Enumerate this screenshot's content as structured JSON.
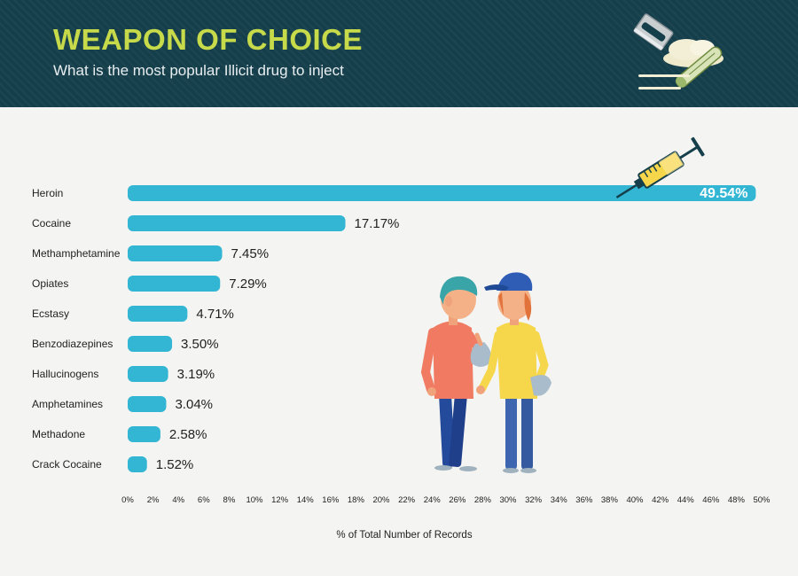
{
  "header": {
    "title": "WEAPON OF CHOICE",
    "subtitle": "What is the most popular Illicit drug to inject"
  },
  "colors": {
    "header_bg": "#163f4c",
    "title": "#c6da4a",
    "bar": "#32b6d4",
    "background": "#f4f4f2"
  },
  "icons": [
    "razor-blade-icon",
    "powder-pile-icon",
    "rolled-banknote-icon",
    "syringe-icon",
    "people-illustration"
  ],
  "chart_data": {
    "type": "bar",
    "orientation": "horizontal",
    "categories": [
      "Heroin",
      "Cocaine",
      "Methamphetamine",
      "Opiates",
      "Ecstasy",
      "Benzodiazepines",
      "Hallucinogens",
      "Amphetamines",
      "Methadone",
      "Crack Cocaine"
    ],
    "values": [
      49.54,
      17.17,
      7.45,
      7.29,
      4.71,
      3.5,
      3.19,
      3.04,
      2.58,
      1.52
    ],
    "value_labels": [
      "49.54%",
      "17.17%",
      "7.45%",
      "7.29%",
      "4.71%",
      "3.50%",
      "3.19%",
      "3.04%",
      "2.58%",
      "1.52%"
    ],
    "xticks": [
      "0%",
      "2%",
      "4%",
      "6%",
      "8%",
      "10%",
      "12%",
      "14%",
      "16%",
      "18%",
      "20%",
      "22%",
      "24%",
      "26%",
      "28%",
      "30%",
      "32%",
      "34%",
      "36%",
      "38%",
      "40%",
      "42%",
      "44%",
      "46%",
      "48%",
      "50%"
    ],
    "xlim": [
      0,
      50
    ],
    "xlabel": "% of Total Number of Records",
    "title": "",
    "grid": false,
    "legend": "none"
  }
}
